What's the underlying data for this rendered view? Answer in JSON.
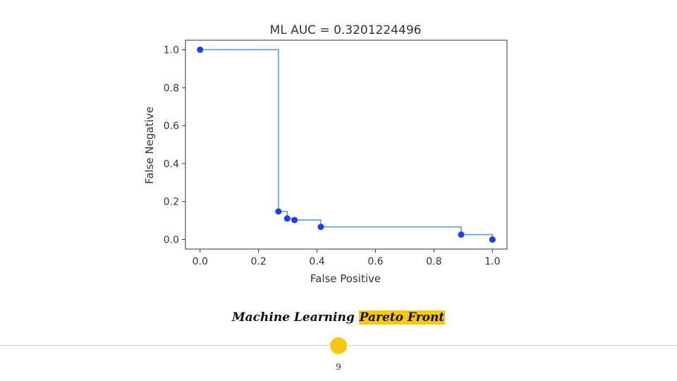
{
  "chart_data": {
    "type": "line",
    "title": "ML AUC = 0.3201224496",
    "xlabel": "False Positive",
    "ylabel": "False Negative",
    "xlim": [
      -0.05,
      1.05
    ],
    "ylim": [
      -0.05,
      1.05
    ],
    "xticks": [
      0.0,
      0.2,
      0.4,
      0.6,
      0.8,
      1.0
    ],
    "yticks": [
      0.0,
      0.2,
      0.4,
      0.6,
      0.8,
      1.0
    ],
    "tick_labels_x": [
      "0.0",
      "0.2",
      "0.4",
      "0.6",
      "0.8",
      "1.0"
    ],
    "tick_labels_y": [
      "0.0",
      "0.2",
      "0.4",
      "0.6",
      "0.8",
      "1.0"
    ],
    "grid": false,
    "series": [
      {
        "type": "step",
        "color": "#5b9bd5",
        "x": [
          0.0,
          0.268,
          0.268,
          0.298,
          0.298,
          0.323,
          0.323,
          0.413,
          0.413,
          0.893,
          0.893,
          1.0,
          1.0
        ],
        "y": [
          1.0,
          1.0,
          0.148,
          0.148,
          0.111,
          0.111,
          0.103,
          0.103,
          0.067,
          0.067,
          0.026,
          0.026,
          0.0
        ]
      },
      {
        "type": "scatter",
        "color": "#1f3fdf",
        "x": [
          0.0,
          0.268,
          0.298,
          0.323,
          0.413,
          0.893,
          1.0
        ],
        "y": [
          1.0,
          0.148,
          0.111,
          0.103,
          0.067,
          0.026,
          0.0
        ]
      }
    ]
  },
  "caption": {
    "text_plain": "Machine Learning ",
    "text_highlight": "Pareto Front",
    "highlight_color": "#f6c90e"
  },
  "footer": {
    "page_number": "9",
    "accent_color": "#f6c90e"
  }
}
